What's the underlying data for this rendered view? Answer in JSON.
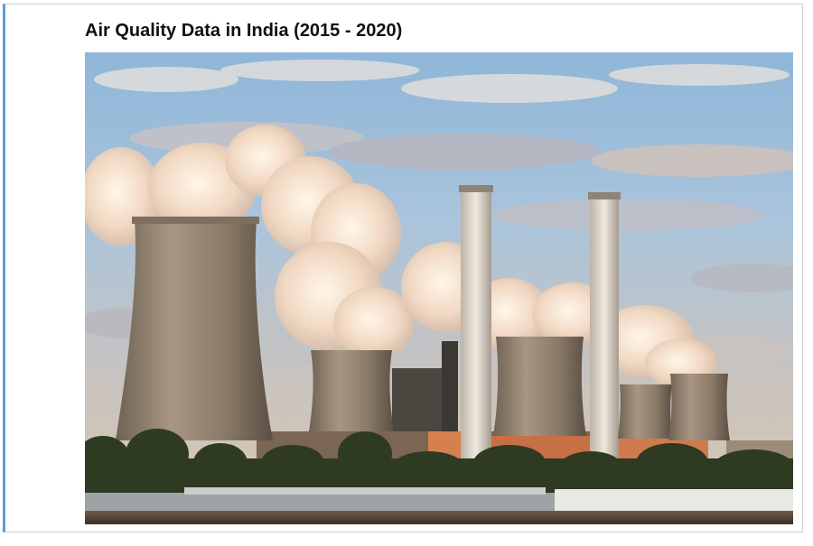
{
  "page": {
    "title": "Air Quality Data in India (2015 - 2020)"
  },
  "hero_image": {
    "subject": "power-plant-cooling-towers-image"
  },
  "colors": {
    "accent_border": "#5b9be0",
    "frame_border": "#cfcfcf",
    "title_text": "#111111"
  }
}
